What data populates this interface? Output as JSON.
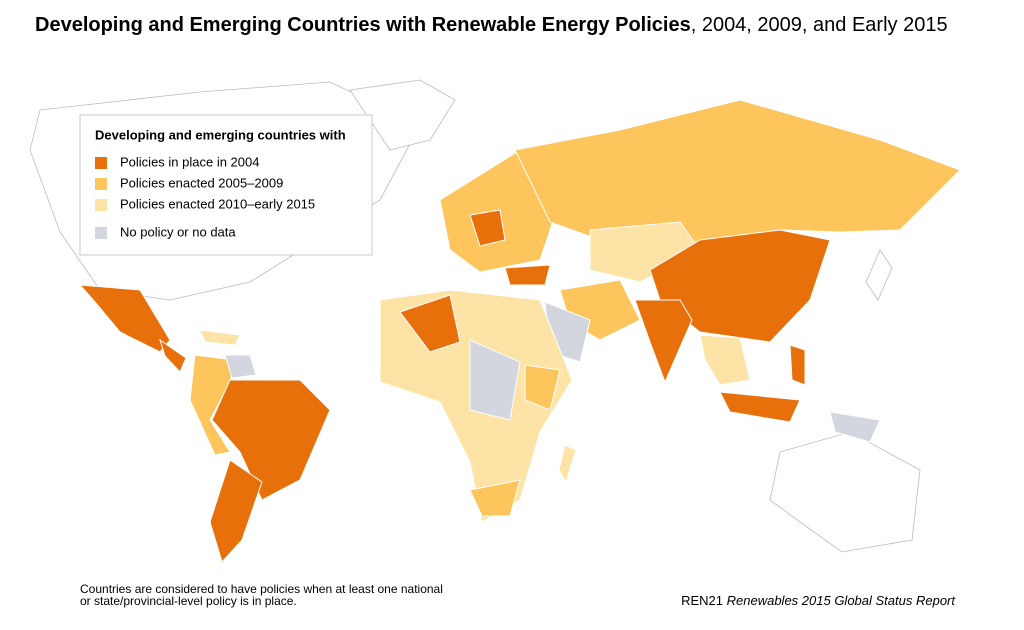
{
  "header": {
    "title_bold": "Developing and Emerging Countries with Renewable Energy Policies",
    "title_rest": ", 2004, 2009, and Early 2015"
  },
  "legend": {
    "title": "Developing and emerging countries with",
    "items": [
      {
        "label": "Policies in place in 2004",
        "color": "#e8700a"
      },
      {
        "label": "Policies enacted 2005–2009",
        "color": "#fdc55c"
      },
      {
        "label": "Policies enacted 2010–early 2015",
        "color": "#fde3a6"
      },
      {
        "label": "No policy or no data",
        "color": "#d3d6de"
      }
    ]
  },
  "footnote": {
    "lines": [
      "Countries are considered to have policies when at least one national",
      "or state/provincial-level policy is in place."
    ]
  },
  "source": {
    "org": "REN21",
    "report": "Renewables 2015 Global Status Report"
  }
}
